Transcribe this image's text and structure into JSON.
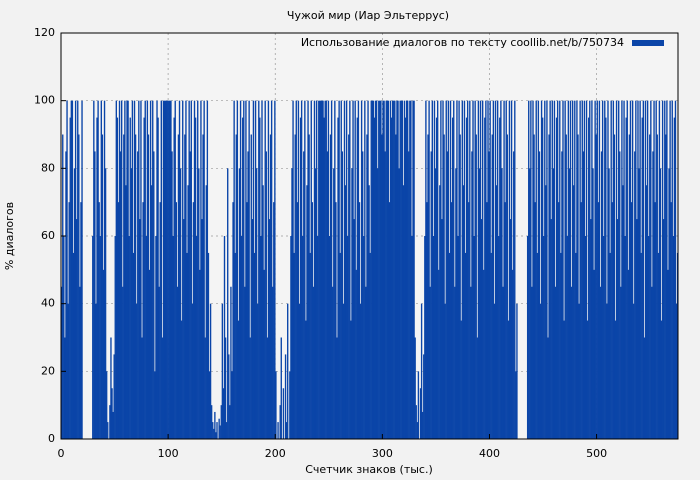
{
  "chart_data": {
    "type": "bar",
    "title": "Чужой мир (Иар Эльтеррус)",
    "xlabel": "Счетчик знаков (тыс.)",
    "ylabel": "% диалогов",
    "xlim": [
      0,
      576
    ],
    "ylim": [
      0,
      120
    ],
    "xticks": [
      0,
      100,
      200,
      300,
      400,
      500
    ],
    "yticks": [
      0,
      20,
      40,
      60,
      80,
      100,
      120
    ],
    "grid": true,
    "legend": "upper right",
    "x": [
      0,
      1,
      2,
      3,
      4,
      5,
      6,
      7,
      8,
      9,
      10,
      11,
      12,
      13,
      14,
      15,
      16,
      17,
      18,
      19,
      20,
      21,
      22,
      23,
      24,
      25,
      26,
      27,
      28,
      29,
      30,
      31,
      32,
      33,
      34,
      35,
      36,
      37,
      38,
      39,
      40,
      41,
      42,
      43,
      44,
      45,
      46,
      47,
      48,
      49,
      50,
      51,
      52,
      53,
      54,
      55,
      56,
      57,
      58,
      59,
      60,
      61,
      62,
      63,
      64,
      65,
      66,
      67,
      68,
      69,
      70,
      71,
      72,
      73,
      74,
      75,
      76,
      77,
      78,
      79,
      80,
      81,
      82,
      83,
      84,
      85,
      86,
      87,
      88,
      89,
      90,
      91,
      92,
      93,
      94,
      95,
      96,
      97,
      98,
      99,
      100,
      101,
      102,
      103,
      104,
      105,
      106,
      107,
      108,
      109,
      110,
      111,
      112,
      113,
      114,
      115,
      116,
      117,
      118,
      119,
      120,
      121,
      122,
      123,
      124,
      125,
      126,
      127,
      128,
      129,
      130,
      131,
      132,
      133,
      134,
      135,
      136,
      137,
      138,
      139,
      140,
      141,
      142,
      143,
      144,
      145,
      146,
      147,
      148,
      149,
      150,
      151,
      152,
      153,
      154,
      155,
      156,
      157,
      158,
      159,
      160,
      161,
      162,
      163,
      164,
      165,
      166,
      167,
      168,
      169,
      170,
      171,
      172,
      173,
      174,
      175,
      176,
      177,
      178,
      179,
      180,
      181,
      182,
      183,
      184,
      185,
      186,
      187,
      188,
      189,
      190,
      191,
      192,
      193,
      194,
      195,
      196,
      197,
      198,
      199,
      200,
      201,
      202,
      203,
      204,
      205,
      206,
      207,
      208,
      209,
      210,
      211,
      212,
      213,
      214,
      215,
      216,
      217,
      218,
      219,
      220,
      221,
      222,
      223,
      224,
      225,
      226,
      227,
      228,
      229,
      230,
      231,
      232,
      233,
      234,
      235,
      236,
      237,
      238,
      239,
      240,
      241,
      242,
      243,
      244,
      245,
      246,
      247,
      248,
      249,
      250,
      251,
      252,
      253,
      254,
      255,
      256,
      257,
      258,
      259,
      260,
      261,
      262,
      263,
      264,
      265,
      266,
      267,
      268,
      269,
      270,
      271,
      272,
      273,
      274,
      275,
      276,
      277,
      278,
      279,
      280,
      281,
      282,
      283,
      284,
      285,
      286,
      287,
      288,
      289,
      290,
      291,
      292,
      293,
      294,
      295,
      296,
      297,
      298,
      299,
      300,
      301,
      302,
      303,
      304,
      305,
      306,
      307,
      308,
      309,
      310,
      311,
      312,
      313,
      314,
      315,
      316,
      317,
      318,
      319,
      320,
      321,
      322,
      323,
      324,
      325,
      326,
      327,
      328,
      329,
      330,
      331,
      332,
      333,
      334,
      335,
      336,
      337,
      338,
      339,
      340,
      341,
      342,
      343,
      344,
      345,
      346,
      347,
      348,
      349,
      350,
      351,
      352,
      353,
      354,
      355,
      356,
      357,
      358,
      359,
      360,
      361,
      362,
      363,
      364,
      365,
      366,
      367,
      368,
      369,
      370,
      371,
      372,
      373,
      374,
      375,
      376,
      377,
      378,
      379,
      380,
      381,
      382,
      383,
      384,
      385,
      386,
      387,
      388,
      389,
      390,
      391,
      392,
      393,
      394,
      395,
      396,
      397,
      398,
      399,
      400,
      401,
      402,
      403,
      404,
      405,
      406,
      407,
      408,
      409,
      410,
      411,
      412,
      413,
      414,
      415,
      416,
      417,
      418,
      419,
      420,
      421,
      422,
      423,
      424,
      425,
      426,
      427,
      428,
      429,
      430,
      431,
      432,
      433,
      434,
      435,
      436,
      437,
      438,
      439,
      440,
      441,
      442,
      443,
      444,
      445,
      446,
      447,
      448,
      449,
      450,
      451,
      452,
      453,
      454,
      455,
      456,
      457,
      458,
      459,
      460,
      461,
      462,
      463,
      464,
      465,
      466,
      467,
      468,
      469,
      470,
      471,
      472,
      473,
      474,
      475,
      476,
      477,
      478,
      479,
      480,
      481,
      482,
      483,
      484,
      485,
      486,
      487,
      488,
      489,
      490,
      491,
      492,
      493,
      494,
      495,
      496,
      497,
      498,
      499,
      500,
      501,
      502,
      503,
      504,
      505,
      506,
      507,
      508,
      509,
      510,
      511,
      512,
      513,
      514,
      515,
      516,
      517,
      518,
      519,
      520,
      521,
      522,
      523,
      524,
      525,
      526,
      527,
      528,
      529,
      530,
      531,
      532,
      533,
      534,
      535,
      536,
      537,
      538,
      539,
      540,
      541,
      542,
      543,
      544,
      545,
      546,
      547,
      548,
      549,
      550,
      551,
      552,
      553,
      554,
      555,
      556,
      557,
      558,
      559,
      560,
      561,
      562,
      563,
      564,
      565,
      566,
      567,
      568,
      569,
      570,
      571,
      572,
      573,
      574,
      575
    ],
    "series": [
      {
        "name": "Использование диалогов по тексту coollib.net/b/750734",
        "color": "#0b45a8",
        "values": [
          45,
          90,
          60,
          30,
          85,
          100,
          40,
          70,
          95,
          100,
          100,
          55,
          80,
          100,
          65,
          100,
          90,
          45,
          70,
          100,
          0,
          0,
          0,
          0,
          0,
          0,
          0,
          0,
          0,
          60,
          100,
          85,
          40,
          95,
          100,
          70,
          60,
          100,
          90,
          50,
          100,
          80,
          20,
          5,
          0,
          10,
          30,
          15,
          8,
          25,
          60,
          100,
          95,
          70,
          100,
          85,
          100,
          45,
          90,
          100,
          75,
          100,
          100,
          60,
          95,
          80,
          100,
          55,
          100,
          90,
          40,
          85,
          100,
          65,
          100,
          30,
          70,
          95,
          100,
          60,
          100,
          90,
          50,
          100,
          75,
          100,
          85,
          20,
          60,
          100,
          95,
          45,
          70,
          100,
          30,
          100,
          100,
          100,
          100,
          100,
          100,
          100,
          100,
          85,
          60,
          95,
          100,
          70,
          45,
          90,
          100,
          80,
          35,
          100,
          65,
          90,
          100,
          55,
          75,
          100,
          85,
          100,
          40,
          70,
          100,
          95,
          60,
          100,
          80,
          50,
          100,
          65,
          90,
          100,
          30,
          75,
          100,
          55,
          20,
          40,
          10,
          5,
          3,
          8,
          2,
          5,
          0,
          6,
          4,
          10,
          40,
          15,
          60,
          30,
          5,
          80,
          25,
          10,
          45,
          20,
          70,
          100,
          55,
          90,
          100,
          35,
          80,
          100,
          60,
          95,
          100,
          45,
          100,
          70,
          85,
          100,
          30,
          90,
          65,
          100,
          55,
          100,
          80,
          40,
          100,
          95,
          60,
          100,
          75,
          50,
          100,
          85,
          30,
          100,
          65,
          90,
          100,
          45,
          70,
          100,
          20,
          0,
          5,
          0,
          10,
          30,
          0,
          15,
          0,
          25,
          5,
          40,
          0,
          20,
          60,
          80,
          100,
          55,
          90,
          100,
          70,
          100,
          40,
          95,
          100,
          60,
          85,
          100,
          35,
          75,
          100,
          90,
          55,
          100,
          70,
          45,
          100,
          80,
          100,
          60,
          100,
          100,
          100,
          100,
          100,
          95,
          100,
          100,
          85,
          100,
          60,
          90,
          100,
          45,
          80,
          100,
          70,
          30,
          95,
          100,
          55,
          100,
          85,
          40,
          100,
          75,
          100,
          60,
          90,
          100,
          35,
          80,
          100,
          65,
          100,
          50,
          95,
          100,
          70,
          40,
          100,
          85,
          60,
          100,
          45,
          90,
          100,
          75,
          55,
          100,
          100,
          100,
          95,
          100,
          100,
          80,
          100,
          100,
          100,
          90,
          100,
          100,
          85,
          100,
          100,
          100,
          70,
          100,
          95,
          100,
          100,
          100,
          90,
          100,
          100,
          80,
          100,
          100,
          100,
          75,
          100,
          95,
          100,
          100,
          85,
          100,
          100,
          60,
          100,
          100,
          30,
          10,
          5,
          20,
          0,
          15,
          40,
          8,
          25,
          60,
          100,
          70,
          90,
          100,
          45,
          85,
          100,
          60,
          100,
          80,
          95,
          100,
          50,
          75,
          100,
          65,
          100,
          90,
          40,
          100,
          85,
          100,
          55,
          100,
          70,
          95,
          100,
          45,
          80,
          100,
          60,
          100,
          90,
          35,
          100,
          75,
          100,
          55,
          95,
          100,
          70,
          100,
          45,
          85,
          100,
          60,
          100,
          90,
          30,
          100,
          80,
          100,
          65,
          100,
          50,
          95,
          100,
          70,
          100,
          85,
          100,
          55,
          90,
          100,
          40,
          100,
          75,
          100,
          60,
          95,
          100,
          80,
          45,
          100,
          70,
          100,
          90,
          35,
          100,
          65,
          100,
          50,
          85,
          100,
          20,
          40,
          0,
          0,
          0,
          0,
          0,
          0,
          0,
          0,
          0,
          60,
          100,
          80,
          100,
          45,
          100,
          90,
          70,
          100,
          55,
          100,
          85,
          40,
          100,
          95,
          60,
          100,
          75,
          100,
          30,
          90,
          100,
          65,
          100,
          80,
          100,
          45,
          95,
          100,
          70,
          100,
          55,
          85,
          100,
          35,
          100,
          90,
          60,
          100,
          80,
          100,
          45,
          100,
          75,
          100,
          55,
          100,
          90,
          40,
          100,
          70,
          100,
          85,
          100,
          60,
          100,
          35,
          95,
          100,
          65,
          100,
          80,
          50,
          100,
          90,
          100,
          70,
          100,
          45,
          85,
          100,
          60,
          100,
          95,
          40,
          100,
          80,
          55,
          100,
          70,
          100,
          90,
          35,
          100,
          65,
          100,
          85,
          45,
          100,
          75,
          100,
          60,
          95,
          100,
          50,
          90,
          100,
          70,
          100,
          40,
          85,
          100,
          65,
          100,
          80,
          100,
          55,
          95,
          100,
          30,
          100,
          75,
          100,
          60,
          90,
          100,
          45,
          85,
          100,
          70,
          100,
          90,
          55,
          100,
          80,
          35,
          100,
          65,
          100,
          90,
          100,
          50,
          80,
          100,
          70,
          100,
          60,
          95,
          100,
          40,
          55
        ]
      }
    ]
  }
}
